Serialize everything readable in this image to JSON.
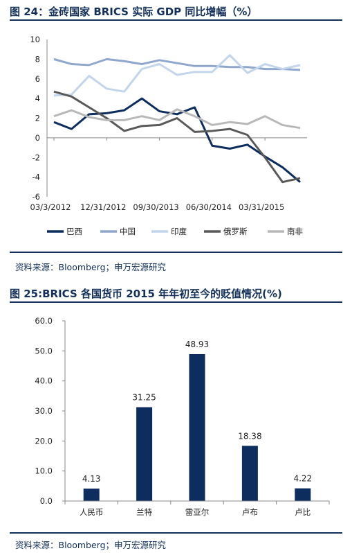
{
  "figures": [
    {
      "title": "图 24：金砖国家 BRICS 实际 GDP 同比增幅（%）",
      "source": "资料来源：Bloomberg；申万宏源研究"
    },
    {
      "title": "图 25:BRICS  各国货币 2015 年年初至今的贬值情况(%)",
      "source": "资料来源：Bloomberg；申万宏源研究"
    }
  ],
  "chart_data": [
    {
      "type": "line",
      "ylim": [
        -6,
        10
      ],
      "yticks": [
        "10",
        "8",
        "6",
        "4",
        "2",
        "0",
        "-2",
        "-4",
        "-6"
      ],
      "ytick_values": [
        10,
        8,
        6,
        4,
        2,
        0,
        -2,
        -4,
        -6
      ],
      "xtick_labels": [
        "03/3/2012",
        "12/31/2012",
        "09/30/2013",
        "06/30/2014",
        "03/31/2015"
      ],
      "xtick_index": [
        0,
        3,
        6,
        9,
        12
      ],
      "n_points": 15,
      "legend_position": "bottom",
      "series": [
        {
          "name": "巴西",
          "color": "#0d2d5e",
          "values": [
            1.6,
            0.9,
            2.4,
            2.5,
            2.8,
            4.0,
            2.7,
            2.4,
            3.1,
            -0.8,
            -1.1,
            -0.7,
            -1.9,
            -3.0,
            -4.5
          ]
        },
        {
          "name": "中国",
          "color": "#8fa7cc",
          "values": [
            8.0,
            7.5,
            7.4,
            8.0,
            7.8,
            7.5,
            7.9,
            7.6,
            7.3,
            7.3,
            7.2,
            7.2,
            7.0,
            7.0,
            6.9
          ]
        },
        {
          "name": "印度",
          "color": "#c3d5ea",
          "values": [
            4.3,
            4.4,
            6.3,
            5.0,
            4.7,
            7.0,
            7.5,
            6.4,
            6.7,
            6.7,
            8.4,
            6.6,
            7.5,
            7.0,
            7.4
          ]
        },
        {
          "name": "俄罗斯",
          "color": "#595959",
          "values": [
            4.7,
            4.2,
            3.1,
            2.0,
            0.7,
            1.2,
            1.3,
            2.0,
            0.6,
            0.7,
            0.9,
            0.3,
            -2.0,
            -4.5,
            -4.1
          ]
        },
        {
          "name": "南非",
          "color": "#b8b8b8",
          "values": [
            2.2,
            2.8,
            2.1,
            1.8,
            1.8,
            2.2,
            1.8,
            2.9,
            2.2,
            1.3,
            1.6,
            1.4,
            2.2,
            1.3,
            1.0
          ]
        }
      ]
    },
    {
      "type": "bar",
      "categories": [
        "人民币",
        "兰特",
        "雷亚尔",
        "卢布",
        "卢比"
      ],
      "values": [
        4.13,
        31.25,
        48.93,
        18.38,
        4.22
      ],
      "value_labels": [
        "4.13",
        "31.25",
        "48.93",
        "18.38",
        "4.22"
      ],
      "ylim": [
        0,
        60
      ],
      "yticks": [
        "60.0",
        "50.0",
        "40.0",
        "30.0",
        "20.0",
        "10.0",
        "0.0"
      ],
      "ytick_values": [
        60,
        50,
        40,
        30,
        20,
        10,
        0
      ],
      "bar_color": "#0d2d5e"
    }
  ]
}
